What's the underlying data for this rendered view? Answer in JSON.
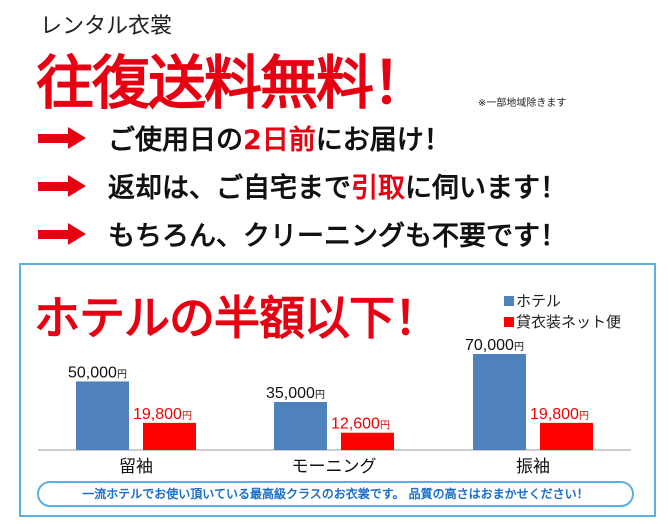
{
  "header": {
    "subtitle": "レンタル衣裳",
    "headline": "往復送料無料！",
    "note": "※一部地域除きます"
  },
  "features": [
    {
      "parts": [
        "ご使用日の",
        "2日前",
        "にお届け！"
      ]
    },
    {
      "parts": [
        "返却は、ご自宅まで",
        "引取",
        "に伺います！"
      ]
    },
    {
      "parts": [
        "もちろん、クリーニングも不要です！",
        "",
        ""
      ]
    }
  ],
  "panel": {
    "title": "ホテルの半額以下！",
    "footer": "一流ホテルでお使い頂いている最高級クラスのお衣裳です。 品質の高さはおまかせください！"
  },
  "chart_data": {
    "type": "bar",
    "categories": [
      "留袖",
      "モーニング",
      "振袖"
    ],
    "series": [
      {
        "name": "ホテル",
        "color": "#4f81bd",
        "values": [
          50000,
          35000,
          70000
        ],
        "labels": [
          "50,000",
          "35,000",
          "70,000"
        ]
      },
      {
        "name": "貸衣装ネット便",
        "color": "#ff0000",
        "values": [
          19800,
          12600,
          19800
        ],
        "labels": [
          "19,800",
          "12,600",
          "19,800"
        ]
      }
    ],
    "unit": "円",
    "ylim": [
      0,
      70000
    ],
    "grid": false,
    "legend": "top-right"
  }
}
